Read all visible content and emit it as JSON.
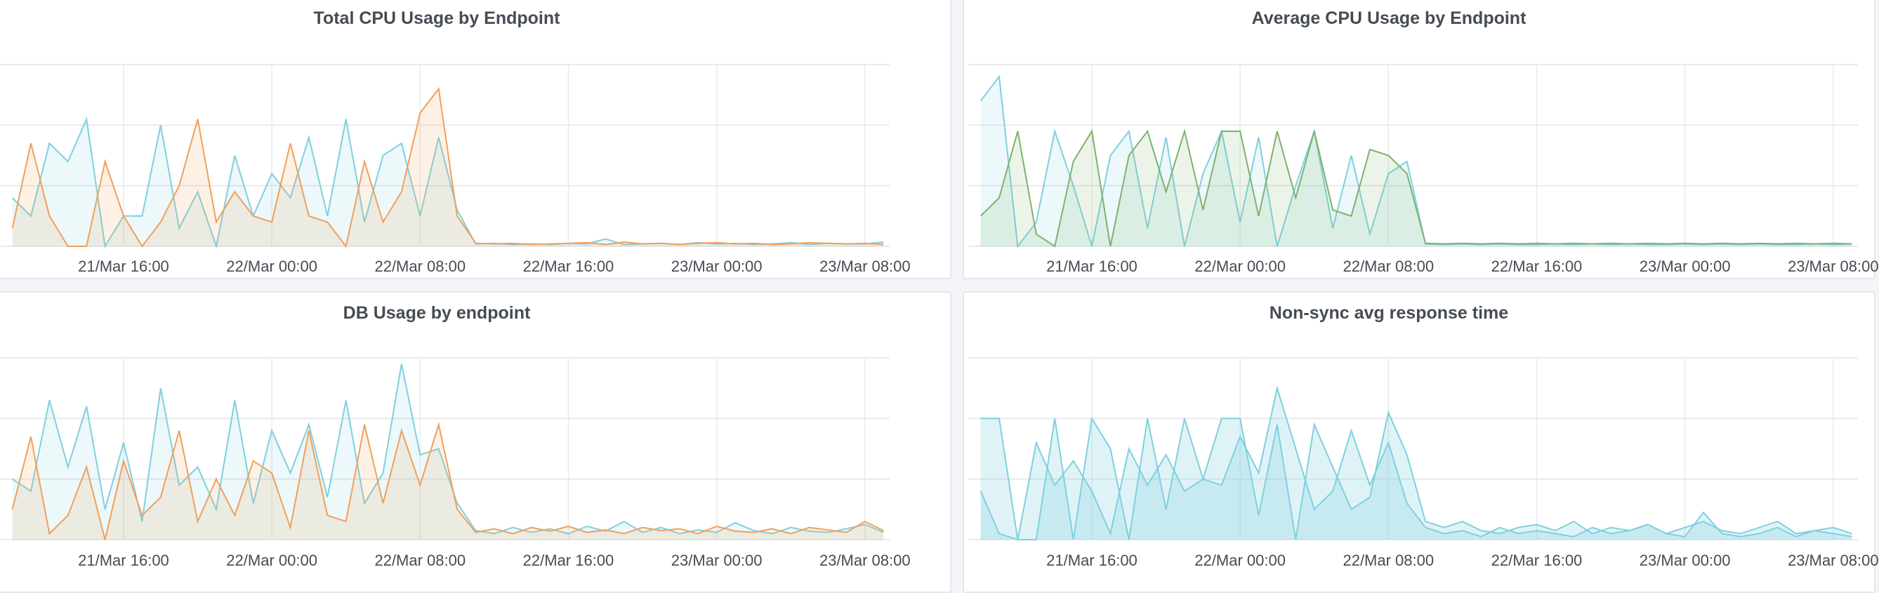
{
  "colors": {
    "blue": "#7fd0df",
    "orange": "#f0a05a",
    "green": "#7eb26d",
    "grid": "#e9eaec"
  },
  "x": [
    "21/Mar 10:00",
    "21/Mar 11:00",
    "21/Mar 12:00",
    "21/Mar 13:00",
    "21/Mar 14:00",
    "21/Mar 15:00",
    "21/Mar 16:00",
    "21/Mar 17:00",
    "21/Mar 18:00",
    "21/Mar 19:00",
    "21/Mar 20:00",
    "21/Mar 21:00",
    "21/Mar 22:00",
    "21/Mar 23:00",
    "22/Mar 00:00",
    "22/Mar 01:00",
    "22/Mar 02:00",
    "22/Mar 03:00",
    "22/Mar 04:00",
    "22/Mar 05:00",
    "22/Mar 06:00",
    "22/Mar 07:00",
    "22/Mar 08:00",
    "22/Mar 09:00",
    "22/Mar 10:00",
    "22/Mar 11:00",
    "22/Mar 12:00",
    "22/Mar 13:00",
    "22/Mar 14:00",
    "22/Mar 15:00",
    "22/Mar 16:00",
    "22/Mar 17:00",
    "22/Mar 18:00",
    "22/Mar 19:00",
    "22/Mar 20:00",
    "22/Mar 21:00",
    "22/Mar 22:00",
    "22/Mar 23:00",
    "23/Mar 00:00",
    "23/Mar 01:00",
    "23/Mar 02:00",
    "23/Mar 03:00",
    "23/Mar 04:00",
    "23/Mar 05:00",
    "23/Mar 06:00",
    "23/Mar 07:00",
    "23/Mar 08:00",
    "23/Mar 09:00"
  ],
  "chart_data": [
    {
      "type": "line",
      "title": "Total CPU Usage by Endpoint",
      "xlim": [
        "21/Mar 09:20",
        "23/Mar 09:20"
      ],
      "ylim": [
        0,
        3
      ],
      "grid": true,
      "xticks": [
        "21/Mar 16:00",
        "22/Mar 00:00",
        "22/Mar 08:00",
        "22/Mar 16:00",
        "23/Mar 00:00",
        "23/Mar 08:00"
      ],
      "series": [
        {
          "color": "#7fd0df",
          "values": [
            0.8,
            0.5,
            1.7,
            1.4,
            2.1,
            0.0,
            0.5,
            0.5,
            2.0,
            0.3,
            0.9,
            0.0,
            1.5,
            0.5,
            1.2,
            0.8,
            1.8,
            0.5,
            2.1,
            0.4,
            1.5,
            1.7,
            0.5,
            1.8,
            0.6,
            0.04,
            0.05,
            0.03,
            0.04,
            0.03,
            0.05,
            0.04,
            0.12,
            0.03,
            0.04,
            0.05,
            0.03,
            0.06,
            0.04,
            0.05,
            0.03,
            0.04,
            0.06,
            0.03,
            0.05,
            0.04,
            0.04,
            0.07
          ]
        },
        {
          "color": "#f0a05a",
          "values": [
            0.3,
            1.7,
            0.5,
            0.0,
            0.0,
            1.4,
            0.5,
            0.0,
            0.4,
            1.0,
            2.1,
            0.4,
            0.9,
            0.5,
            0.4,
            1.7,
            0.5,
            0.4,
            0.0,
            1.4,
            0.4,
            0.9,
            2.2,
            2.6,
            0.5,
            0.05,
            0.04,
            0.05,
            0.03,
            0.04,
            0.05,
            0.06,
            0.03,
            0.07,
            0.04,
            0.05,
            0.03,
            0.05,
            0.06,
            0.04,
            0.05,
            0.03,
            0.04,
            0.06,
            0.05,
            0.04,
            0.05,
            0.03
          ]
        }
      ]
    },
    {
      "type": "line",
      "title": "Average CPU Usage by Endpoint",
      "xlim": [
        "21/Mar 09:20",
        "23/Mar 09:20"
      ],
      "ylim": [
        0,
        3
      ],
      "grid": true,
      "xticks": [
        "21/Mar 16:00",
        "22/Mar 00:00",
        "22/Mar 08:00",
        "22/Mar 16:00",
        "23/Mar 00:00",
        "23/Mar 08:00"
      ],
      "series": [
        {
          "color": "#7fd0df",
          "values": [
            2.4,
            2.8,
            0.0,
            0.4,
            1.9,
            1.0,
            0.0,
            1.5,
            1.9,
            0.3,
            1.8,
            0.0,
            1.2,
            1.9,
            0.4,
            1.8,
            0.0,
            1.0,
            1.9,
            0.3,
            1.5,
            0.2,
            1.2,
            1.4,
            0.04,
            0.03,
            0.04,
            0.03,
            0.04,
            0.03,
            0.03,
            0.04,
            0.03,
            0.04,
            0.03,
            0.04,
            0.03,
            0.03,
            0.04,
            0.03,
            0.04,
            0.03,
            0.04,
            0.03,
            0.03,
            0.04,
            0.03,
            0.04
          ]
        },
        {
          "color": "#7eb26d",
          "values": [
            0.5,
            0.8,
            1.9,
            0.2,
            0.0,
            1.4,
            1.9,
            0.0,
            1.5,
            1.9,
            0.9,
            1.9,
            0.6,
            1.9,
            1.9,
            0.5,
            1.9,
            0.8,
            1.9,
            0.6,
            0.5,
            1.6,
            1.5,
            1.2,
            0.05,
            0.04,
            0.05,
            0.04,
            0.05,
            0.04,
            0.05,
            0.04,
            0.05,
            0.04,
            0.05,
            0.04,
            0.05,
            0.04,
            0.05,
            0.04,
            0.05,
            0.04,
            0.05,
            0.04,
            0.05,
            0.04,
            0.05,
            0.04
          ]
        }
      ]
    },
    {
      "type": "line",
      "title": "DB Usage by endpoint",
      "xlim": [
        "21/Mar 09:20",
        "23/Mar 09:20"
      ],
      "ylim": [
        0,
        3
      ],
      "grid": true,
      "xticks": [
        "21/Mar 16:00",
        "22/Mar 00:00",
        "22/Mar 08:00",
        "22/Mar 16:00",
        "23/Mar 00:00",
        "23/Mar 08:00"
      ],
      "series": [
        {
          "color": "#7fd0df",
          "values": [
            1.0,
            0.8,
            2.3,
            1.2,
            2.2,
            0.5,
            1.6,
            0.3,
            2.5,
            0.9,
            1.2,
            0.5,
            2.3,
            0.6,
            1.8,
            1.1,
            1.9,
            0.7,
            2.3,
            0.6,
            1.1,
            2.9,
            1.4,
            1.5,
            0.6,
            0.15,
            0.1,
            0.2,
            0.12,
            0.18,
            0.1,
            0.22,
            0.14,
            0.3,
            0.12,
            0.2,
            0.1,
            0.16,
            0.12,
            0.28,
            0.15,
            0.1,
            0.2,
            0.14,
            0.12,
            0.18,
            0.25,
            0.12
          ]
        },
        {
          "color": "#f0a05a",
          "values": [
            0.5,
            1.7,
            0.1,
            0.4,
            1.2,
            0.0,
            1.3,
            0.4,
            0.7,
            1.8,
            0.3,
            1.0,
            0.4,
            1.3,
            1.1,
            0.2,
            1.8,
            0.4,
            0.3,
            1.9,
            0.6,
            1.8,
            0.9,
            1.9,
            0.5,
            0.12,
            0.18,
            0.1,
            0.2,
            0.14,
            0.22,
            0.12,
            0.16,
            0.1,
            0.2,
            0.15,
            0.18,
            0.1,
            0.22,
            0.14,
            0.12,
            0.18,
            0.1,
            0.2,
            0.16,
            0.12,
            0.3,
            0.15
          ]
        }
      ]
    },
    {
      "type": "area",
      "title": "Non-sync avg response time",
      "xlim": [
        "21/Mar 09:20",
        "23/Mar 09:20"
      ],
      "ylim": [
        0,
        3
      ],
      "grid": true,
      "xticks": [
        "21/Mar 16:00",
        "22/Mar 00:00",
        "22/Mar 08:00",
        "22/Mar 16:00",
        "23/Mar 00:00",
        "23/Mar 08:00"
      ],
      "series": [
        {
          "color": "#7fd0df",
          "values": [
            2.0,
            2.0,
            0.0,
            0.0,
            2.0,
            0.0,
            2.0,
            1.5,
            0.0,
            2.0,
            0.5,
            2.0,
            1.0,
            2.0,
            2.0,
            0.4,
            1.9,
            0.0,
            1.9,
            1.2,
            0.5,
            0.7,
            2.1,
            1.4,
            0.3,
            0.2,
            0.3,
            0.15,
            0.1,
            0.2,
            0.25,
            0.15,
            0.3,
            0.1,
            0.2,
            0.15,
            0.25,
            0.1,
            0.2,
            0.3,
            0.15,
            0.1,
            0.2,
            0.3,
            0.1,
            0.15,
            0.2,
            0.1
          ]
        },
        {
          "color": "#7fd0df",
          "values": [
            0.8,
            0.1,
            0.0,
            1.6,
            0.9,
            1.3,
            0.8,
            0.1,
            1.5,
            0.9,
            1.4,
            0.8,
            1.0,
            0.9,
            1.7,
            1.1,
            2.5,
            1.5,
            0.5,
            0.8,
            1.8,
            0.9,
            1.6,
            0.6,
            0.2,
            0.1,
            0.15,
            0.05,
            0.2,
            0.1,
            0.15,
            0.1,
            0.05,
            0.2,
            0.1,
            0.15,
            0.25,
            0.1,
            0.05,
            0.45,
            0.1,
            0.05,
            0.1,
            0.2,
            0.05,
            0.15,
            0.1,
            0.05
          ]
        }
      ]
    }
  ]
}
